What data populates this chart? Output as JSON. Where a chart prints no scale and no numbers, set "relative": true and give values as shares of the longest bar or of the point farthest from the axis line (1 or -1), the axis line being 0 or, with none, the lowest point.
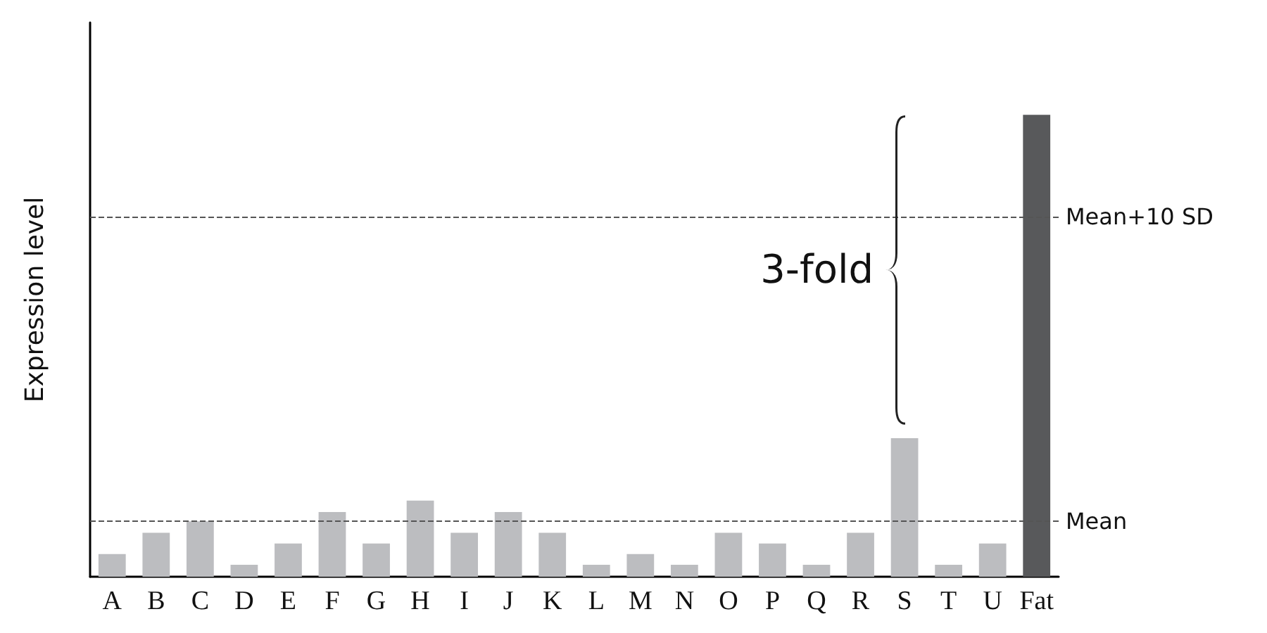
{
  "chart_data": {
    "type": "bar",
    "ylabel": "Expression level",
    "relative": true,
    "categories": [
      "A",
      "B",
      "C",
      "D",
      "E",
      "F",
      "G",
      "H",
      "I",
      "J",
      "K",
      "L",
      "M",
      "N",
      "O",
      "P",
      "Q",
      "R",
      "S",
      "T",
      "U",
      "Fat"
    ],
    "values": [
      0.049,
      0.095,
      0.12,
      0.026,
      0.072,
      0.14,
      0.072,
      0.165,
      0.095,
      0.14,
      0.095,
      0.026,
      0.049,
      0.026,
      0.095,
      0.072,
      0.026,
      0.095,
      0.3,
      0.026,
      0.072,
      1
    ],
    "colors": [
      "#bcbdc0",
      "#bcbdc0",
      "#bcbdc0",
      "#bcbdc0",
      "#bcbdc0",
      "#bcbdc0",
      "#bcbdc0",
      "#bcbdc0",
      "#bcbdc0",
      "#bcbdc0",
      "#bcbdc0",
      "#bcbdc0",
      "#bcbdc0",
      "#bcbdc0",
      "#bcbdc0",
      "#bcbdc0",
      "#bcbdc0",
      "#bcbdc0",
      "#bcbdc0",
      "#bcbdc0",
      "#bcbdc0",
      "#58595b"
    ],
    "ref_lines": [
      {
        "axis": "y",
        "value": 0.121,
        "label": "Mean",
        "color": "#555555",
        "line_style": "dashed"
      },
      {
        "axis": "y",
        "value": 0.777,
        "label": "Mean+10 SD",
        "color": "#555555",
        "line_style": "dashed"
      }
    ],
    "annotations": [
      "3-fold"
    ],
    "grid": false
  }
}
